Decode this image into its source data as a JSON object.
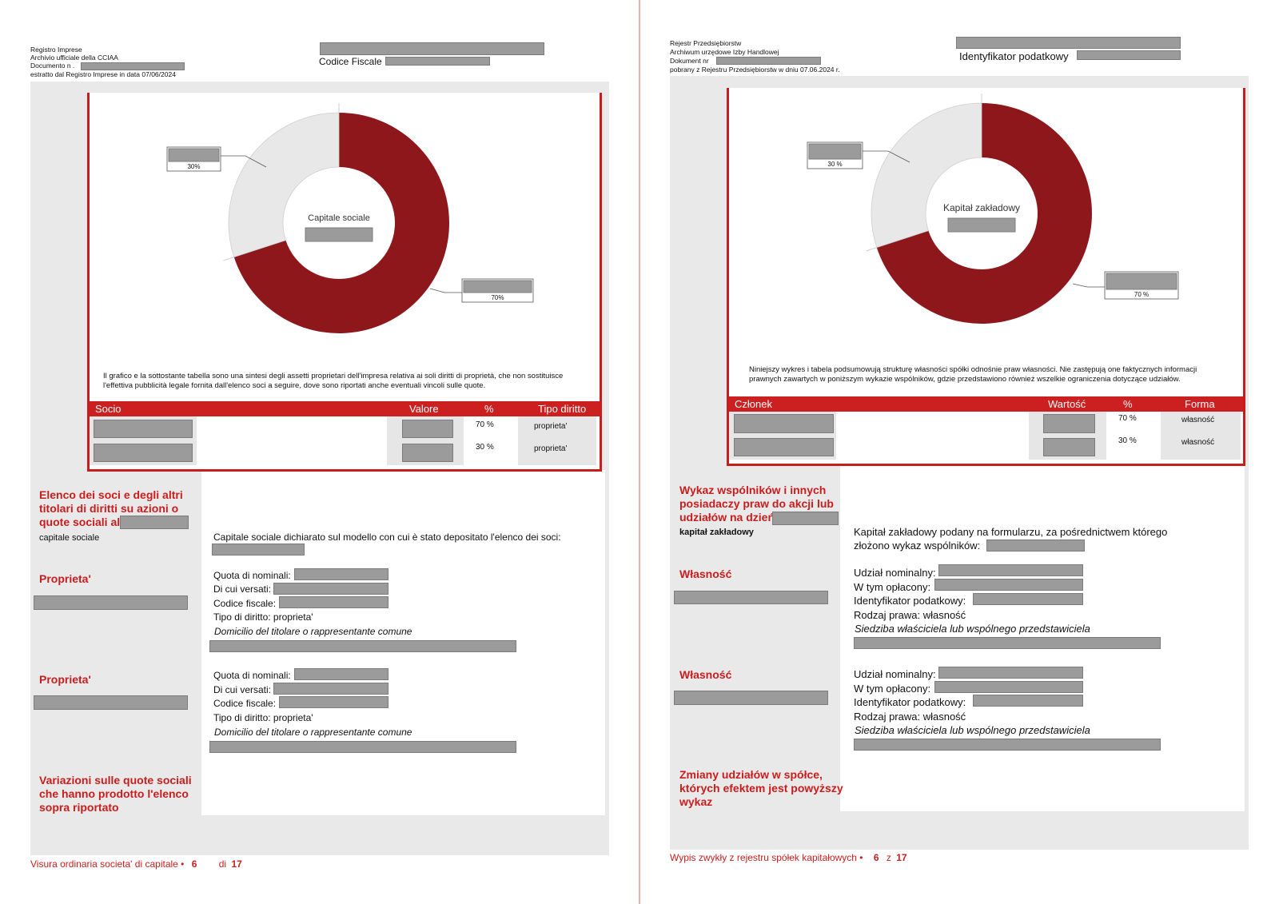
{
  "it": {
    "header_left": [
      "Registro Imprese",
      "Archivio ufficiale della CCIAA",
      "Documento n .",
      "estratto dal Registro Imprese in data 07/06/2024"
    ],
    "fiscal_label": "Codice Fiscale",
    "chart_center": "Capitale sociale",
    "note": "Il grafico e la sottostante tabella sono una sintesi degli assetti proprietari dell'impresa relativa ai soli diritti di proprietà, che non sostituisce l'effettiva pubblicità legale fornita dall'elenco soci a seguire, dove sono riportati anche eventuali vincoli sulle quote.",
    "table": {
      "headers": [
        "Socio",
        "Valore",
        "%",
        "Tipo diritto"
      ],
      "rows": [
        {
          "pct": "70 %",
          "type": "proprieta'"
        },
        {
          "pct": "30 %",
          "type": "proprieta'"
        }
      ]
    },
    "section1_title": "Elenco dei soci e degli altri titolari di diritti su azioni o quote sociali al",
    "section1_sub": "capitale sociale",
    "capital_declared": "Capitale sociale dichiarato sul modello con cui è stato depositato l'elenco dei soci:",
    "owner_label": "Proprieta'",
    "fields": [
      "Quota di nominali:",
      "Di cui versati:",
      "Codice fiscale:",
      "Tipo di diritto: proprieta'"
    ],
    "domicile": "Domicilio del titolare o rappresentante comune",
    "section2_title": "Variazioni sulle quote sociali che hanno prodotto l'elenco sopra riportato",
    "footer_text": "Visura ordinaria societa' di capitale •",
    "footer_page": "6",
    "footer_of": "di",
    "footer_total": "17"
  },
  "pl": {
    "header_left": [
      "Rejestr Przedsiębiorstw",
      "Archiwum urzędowe Izby Handlowej",
      "Dokument nr",
      "pobrany z Rejestru Przedsiębiorstw w dniu 07.06.2024 r."
    ],
    "fiscal_label": "Identyfikator podatkowy",
    "chart_center": "Kapitał zakładowy",
    "note": "Niniejszy wykres i tabela podsumowują strukturę własności spółki odnośnie praw własności. Nie zastępują one faktycznych informacji prawnych zawartych w poniższym wykazie wspólników, gdzie przedstawiono również wszelkie ograniczenia dotyczące udziałów.",
    "table": {
      "headers": [
        "Członek",
        "Wartość",
        "%",
        "Forma"
      ],
      "rows": [
        {
          "pct": "70 %",
          "type": "własność"
        },
        {
          "pct": "30 %",
          "type": "własność"
        }
      ]
    },
    "section1_title": "Wykaz wspólników i innych posiadaczy praw do akcji lub udziałów na dzień",
    "section1_sub": "kapitał zakładowy",
    "capital_declared_1": "Kapitał zakładowy podany na formularzu, za pośrednictwem którego",
    "capital_declared_2": "złożono wykaz wspólników:",
    "owner_label": "Własność",
    "fields": [
      "Udział nominalny:",
      "W tym opłacony:",
      "Identyfikator podatkowy:",
      "Rodzaj prawa: własność"
    ],
    "domicile": "Siedziba właściciela lub wspólnego przedstawiciela",
    "section2_title": "Zmiany udziałów w spółce, których efektem jest powyższy wykaz",
    "footer_text": "Wypis zwykły z rejestru spółek kapitałowych •",
    "footer_page": "6",
    "footer_of": "z",
    "footer_total": "17"
  },
  "chart_data": [
    {
      "type": "pie",
      "slices": [
        {
          "label": "",
          "value": 70
        },
        {
          "label": "",
          "value": 30
        }
      ],
      "slice_labels": [
        "70%",
        "30%"
      ],
      "colors": [
        "#8e171b",
        "#e8e8e8"
      ],
      "center_label": "Capitale sociale"
    },
    {
      "type": "pie",
      "slices": [
        {
          "label": "",
          "value": 70
        },
        {
          "label": "",
          "value": 30
        }
      ],
      "slice_labels": [
        "70 %",
        "30 %"
      ],
      "colors": [
        "#8e171b",
        "#e8e8e8"
      ],
      "center_label": "Kapitał zakładowy"
    }
  ],
  "colors": {
    "accent": "#c91d1d",
    "pie_dark": "#8e171b",
    "pie_light": "#e8e8e8",
    "redaction": "#9b9b9b",
    "panel": "#e9e9e9"
  }
}
